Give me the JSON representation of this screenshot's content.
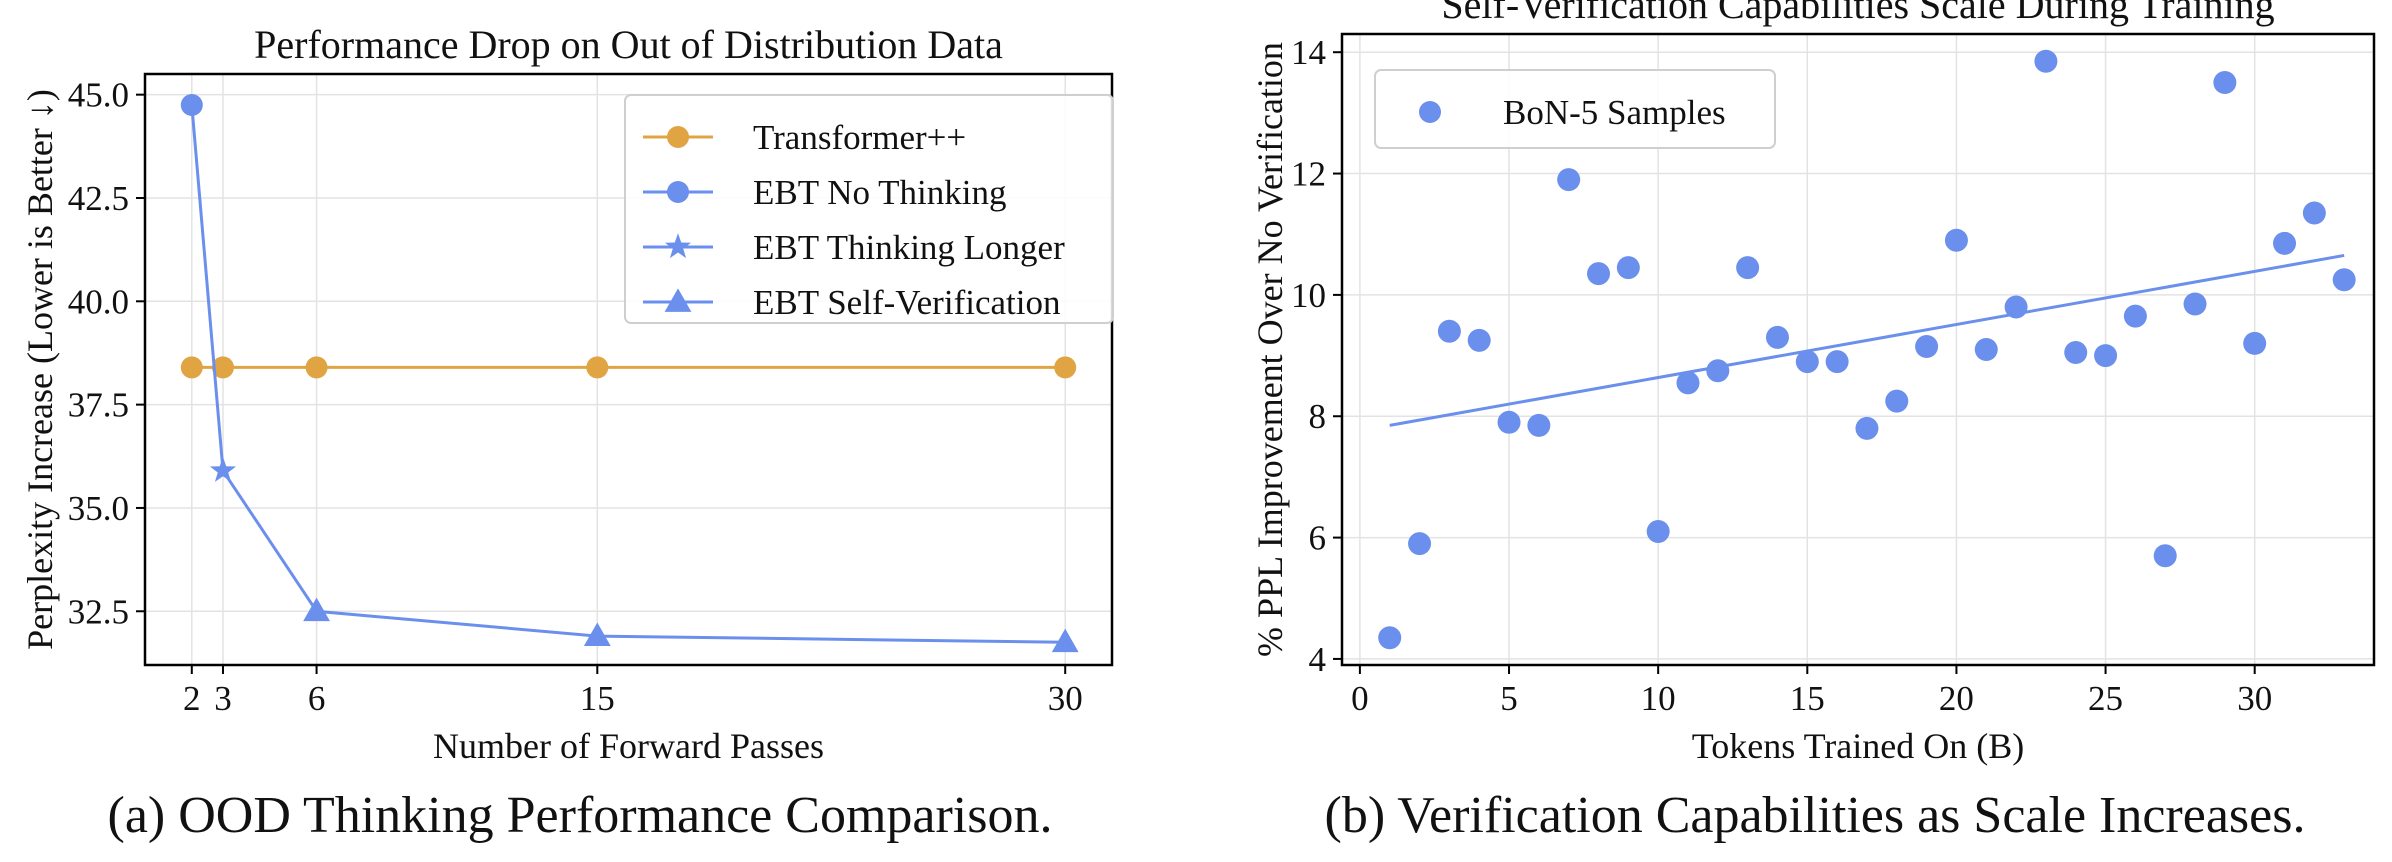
{
  "captions": {
    "left": "(a) OOD Thinking Performance Comparison.",
    "right": "(b) Verification Capabilities as Scale Increases."
  },
  "colors": {
    "orange": "#E0A542",
    "blue": "#6B8FEC",
    "grid": "#e3e3e3",
    "axis": "#000000"
  },
  "chart_data": [
    {
      "type": "line",
      "title": "Performance Drop on Out of Distribution Data",
      "xlabel": "Number of Forward Passes",
      "ylabel": "Perplexity Increase (Lower is Better ↓)",
      "xlim": [
        0.5,
        31.5
      ],
      "ylim": [
        31.2,
        45.5
      ],
      "xticks": [
        2,
        3,
        6,
        15,
        30
      ],
      "yticks": [
        32.5,
        35.0,
        37.5,
        40.0,
        42.5,
        45.0
      ],
      "ytick_labels": [
        "32.5",
        "35.0",
        "37.5",
        "40.0",
        "42.5",
        "45.0"
      ],
      "grid": true,
      "legend_position": "top-right",
      "series": [
        {
          "name": "Transformer++",
          "color": "#E0A542",
          "points": [
            {
              "x": 2,
              "y": 38.4,
              "marker": "circle"
            },
            {
              "x": 3,
              "y": 38.4,
              "marker": "circle"
            },
            {
              "x": 6,
              "y": 38.4,
              "marker": "circle"
            },
            {
              "x": 15,
              "y": 38.4,
              "marker": "circle"
            },
            {
              "x": 30,
              "y": 38.4,
              "marker": "circle"
            }
          ]
        },
        {
          "name": "EBT No Thinking",
          "color": "#6B8FEC",
          "points": [
            {
              "x": 2,
              "y": 44.75,
              "marker": "circle"
            },
            {
              "x": 3,
              "y": 35.9,
              "marker": "star"
            },
            {
              "x": 6,
              "y": 32.5,
              "marker": "triangle"
            },
            {
              "x": 15,
              "y": 31.9,
              "marker": "triangle"
            },
            {
              "x": 30,
              "y": 31.75,
              "marker": "triangle"
            }
          ]
        }
      ],
      "legend": [
        {
          "label": "Transformer++",
          "color": "#E0A542",
          "marker": "circle"
        },
        {
          "label": "EBT No Thinking",
          "color": "#6B8FEC",
          "marker": "circle"
        },
        {
          "label": "EBT Thinking Longer",
          "color": "#6B8FEC",
          "marker": "star"
        },
        {
          "label": "EBT Self-Verification",
          "color": "#6B8FEC",
          "marker": "triangle"
        }
      ]
    },
    {
      "type": "scatter",
      "title": "Self-Verification Capabilities Scale During Training",
      "xlabel": "Tokens Trained On (B)",
      "ylabel": "% PPL Improvement Over No Verification",
      "xlim": [
        -0.6,
        34.0
      ],
      "ylim": [
        3.9,
        14.3
      ],
      "xticks": [
        0,
        5,
        10,
        15,
        20,
        25,
        30
      ],
      "yticks": [
        4,
        6,
        8,
        10,
        12,
        14
      ],
      "grid": true,
      "legend_position": "top-left",
      "series": [
        {
          "name": "BoN-5 Samples",
          "color": "#6B8FEC",
          "x": [
            1,
            2,
            3,
            4,
            5,
            6,
            7,
            8,
            9,
            10,
            11,
            12,
            13,
            14,
            15,
            16,
            17,
            18,
            19,
            20,
            21,
            22,
            23,
            24,
            25,
            26,
            27,
            28,
            29,
            30,
            31,
            32,
            33
          ],
          "y": [
            4.35,
            5.9,
            9.4,
            9.25,
            7.9,
            7.85,
            11.9,
            10.35,
            10.45,
            6.1,
            8.55,
            8.75,
            10.45,
            9.3,
            8.9,
            8.9,
            7.8,
            8.25,
            9.15,
            10.9,
            9.1,
            9.8,
            13.85,
            9.05,
            9.0,
            9.65,
            5.7,
            9.85,
            13.5,
            9.2,
            10.85,
            11.35,
            10.25
          ]
        }
      ],
      "trendline": {
        "color": "#6B8FEC",
        "x": [
          1,
          33
        ],
        "y": [
          7.85,
          10.65
        ]
      },
      "legend": [
        {
          "label": "BoN-5 Samples",
          "color": "#6B8FEC",
          "marker": "circle"
        }
      ]
    }
  ]
}
